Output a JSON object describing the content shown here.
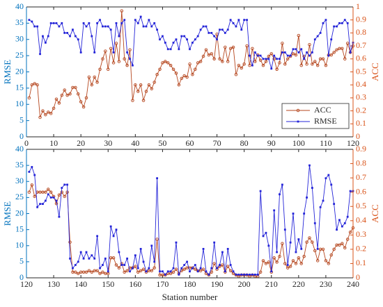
{
  "chart_data": [
    {
      "type": "line",
      "ylabel": "RMSE",
      "y2label": "ACC",
      "xlim": [
        0,
        120
      ],
      "xticks": [
        0,
        10,
        20,
        30,
        40,
        50,
        60,
        70,
        80,
        90,
        100,
        110,
        120
      ],
      "ylim": [
        0,
        40
      ],
      "yticks": [
        0,
        5,
        10,
        15,
        20,
        25,
        30,
        35,
        40
      ],
      "y2lim": [
        0,
        1
      ],
      "y2ticks": [
        0,
        0.1,
        0.2,
        0.3,
        0.4,
        0.5,
        0.6,
        0.7,
        0.8,
        0.9,
        1
      ],
      "y_axis_color": "#0072bd",
      "y2_axis_color": "#d95319",
      "legend": "lower right",
      "x": [
        1,
        2,
        3,
        4,
        5,
        6,
        7,
        8,
        9,
        10,
        11,
        12,
        13,
        14,
        15,
        16,
        17,
        18,
        19,
        20,
        21,
        22,
        23,
        24,
        25,
        26,
        27,
        28,
        29,
        30,
        31,
        32,
        33,
        34,
        35,
        36,
        37,
        38,
        39,
        40,
        41,
        42,
        43,
        44,
        45,
        46,
        47,
        48,
        49,
        50,
        51,
        52,
        53,
        54,
        55,
        56,
        57,
        58,
        59,
        60,
        61,
        62,
        63,
        64,
        65,
        66,
        67,
        68,
        69,
        70,
        71,
        72,
        73,
        74,
        75,
        76,
        77,
        78,
        79,
        80,
        81,
        82,
        83,
        84,
        85,
        86,
        87,
        88,
        89,
        90,
        91,
        92,
        93,
        94,
        95,
        96,
        97,
        98,
        99,
        100,
        101,
        102,
        103,
        104,
        105,
        106,
        107,
        108,
        109,
        110,
        111,
        112,
        113,
        114,
        115,
        116,
        117,
        118,
        119,
        120
      ],
      "series": [
        {
          "name": "ACC",
          "color": "#b5461e",
          "axis": "y2",
          "marker": "circle",
          "values": [
            0.3,
            0.4,
            0.41,
            0.4,
            0.15,
            0.2,
            0.17,
            0.19,
            0.18,
            0.22,
            0.29,
            0.26,
            0.32,
            0.36,
            0.32,
            0.33,
            0.38,
            0.38,
            0.33,
            0.27,
            0.23,
            0.3,
            0.46,
            0.4,
            0.46,
            0.42,
            0.52,
            0.6,
            0.66,
            0.52,
            0.68,
            0.57,
            0.72,
            0.58,
            0.97,
            0.6,
            0.55,
            0.67,
            0.28,
            0.4,
            0.35,
            0.4,
            0.28,
            0.35,
            0.4,
            0.37,
            0.42,
            0.48,
            0.52,
            0.57,
            0.58,
            0.57,
            0.55,
            0.52,
            0.49,
            0.4,
            0.45,
            0.47,
            0.46,
            0.56,
            0.48,
            0.52,
            0.57,
            0.58,
            0.62,
            0.67,
            0.63,
            0.64,
            0.6,
            0.79,
            0.6,
            0.58,
            0.69,
            0.58,
            0.68,
            0.69,
            0.48,
            0.55,
            0.53,
            0.56,
            0.7,
            0.55,
            0.68,
            0.58,
            0.63,
            0.59,
            0.55,
            0.58,
            0.62,
            0.64,
            0.6,
            0.52,
            0.57,
            0.72,
            0.56,
            0.6,
            0.62,
            0.64,
            0.63,
            0.78,
            0.55,
            0.62,
            0.56,
            0.71,
            0.56,
            0.58,
            0.55,
            0.6,
            0.6,
            0.55,
            0.63,
            0.63,
            0.65,
            0.67,
            0.68,
            0.68,
            0.6,
            0.72,
            0.65,
            0.7
          ]
        },
        {
          "name": "RMSE",
          "color": "#2424d8",
          "marker": "square",
          "values": [
            36,
            35.5,
            34,
            34,
            25.5,
            31,
            29,
            31,
            35,
            35,
            35,
            34,
            35,
            32,
            32,
            31,
            33,
            31,
            30,
            26,
            35,
            34,
            35,
            31,
            26,
            35,
            36,
            34,
            34,
            34,
            33,
            26,
            35,
            31,
            35,
            36,
            26,
            24,
            22,
            36,
            35,
            37,
            34,
            34,
            36,
            34,
            35,
            33,
            30,
            31,
            29,
            27,
            27,
            29,
            30,
            27,
            31,
            31,
            30,
            27,
            29,
            30,
            31,
            33,
            34,
            34,
            32,
            32,
            31,
            30,
            33,
            33,
            32,
            33,
            36,
            35,
            34,
            36,
            33,
            36,
            36,
            25,
            22,
            26,
            25,
            25,
            24,
            24,
            24,
            21,
            25,
            24,
            24,
            26,
            26,
            25,
            25,
            27,
            27,
            26,
            27,
            24,
            26,
            25,
            26,
            30,
            31,
            32,
            35,
            36,
            25,
            30,
            34,
            34,
            35,
            35,
            36,
            35,
            26,
            29
          ]
        }
      ]
    },
    {
      "type": "line",
      "ylabel": "RMSE",
      "y2label": "ACC",
      "xlabel": "Station number",
      "xlim": [
        120,
        240
      ],
      "xticks": [
        120,
        130,
        140,
        150,
        160,
        170,
        180,
        190,
        200,
        210,
        220,
        230,
        240
      ],
      "ylim": [
        0,
        40
      ],
      "yticks": [
        0,
        5,
        10,
        15,
        20,
        25,
        30,
        35,
        40
      ],
      "y2lim": [
        0,
        0.9
      ],
      "y2ticks": [
        0,
        0.1,
        0.2,
        0.3,
        0.4,
        0.5,
        0.6,
        0.7,
        0.8,
        0.9
      ],
      "y_axis_color": "#0072bd",
      "y2_axis_color": "#d95319",
      "x": [
        121,
        122,
        123,
        124,
        125,
        126,
        127,
        128,
        129,
        130,
        131,
        132,
        133,
        134,
        135,
        136,
        137,
        138,
        139,
        140,
        141,
        142,
        143,
        144,
        145,
        146,
        147,
        148,
        149,
        150,
        151,
        152,
        153,
        154,
        155,
        156,
        157,
        158,
        159,
        160,
        161,
        162,
        163,
        164,
        165,
        166,
        167,
        168,
        169,
        170,
        171,
        172,
        173,
        174,
        175,
        176,
        177,
        178,
        179,
        180,
        181,
        182,
        183,
        184,
        185,
        186,
        187,
        188,
        189,
        190,
        191,
        192,
        193,
        194,
        195,
        196,
        197,
        198,
        199,
        200,
        201,
        202,
        203,
        204,
        205,
        206,
        207,
        208,
        209,
        210,
        211,
        212,
        213,
        214,
        215,
        216,
        217,
        218,
        219,
        220,
        221,
        222,
        223,
        224,
        225,
        226,
        227,
        228,
        229,
        230,
        231,
        232,
        233,
        234,
        235,
        236,
        237,
        238,
        239,
        240
      ],
      "series": [
        {
          "name": "ACC",
          "color": "#b5461e",
          "axis": "y2",
          "marker": "circle",
          "values": [
            0.6,
            0.65,
            0.57,
            0.6,
            0.6,
            0.6,
            0.6,
            0.62,
            0.6,
            0.57,
            0.52,
            0.58,
            0.6,
            0.57,
            0.6,
            0.25,
            0.04,
            0.04,
            0.03,
            0.04,
            0.04,
            0.04,
            0.05,
            0.04,
            0.05,
            0.05,
            0.03,
            0.04,
            0.03,
            0.03,
            0.14,
            0.14,
            0.09,
            0.07,
            0.1,
            0.04,
            0.05,
            0.07,
            0.07,
            0.08,
            0.04,
            0.05,
            0.06,
            0.04,
            0.05,
            0.05,
            0.07,
            0.27,
            0.02,
            0.02,
            0.02,
            0.03,
            0.03,
            0.04,
            0.06,
            0.03,
            0.05,
            0.06,
            0.07,
            0.07,
            0.07,
            0.06,
            0.05,
            0.05,
            0.06,
            0.03,
            0.02,
            0.04,
            0.1,
            0.06,
            0.08,
            0.09,
            0.04,
            0.08,
            0.05,
            0.03,
            0.02,
            0.01,
            0.02,
            0.02,
            0.02,
            0.01,
            0.02,
            0.01,
            0.01,
            0.04,
            0.12,
            0.1,
            0.11,
            0.04,
            0.14,
            0.11,
            0.15,
            0.24,
            0.1,
            0.07,
            0.08,
            0.12,
            0.1,
            0.14,
            0.1,
            0.15,
            0.25,
            0.28,
            0.25,
            0.19,
            0.12,
            0.2,
            0.2,
            0.12,
            0.1,
            0.16,
            0.2,
            0.23,
            0.23,
            0.24,
            0.21,
            0.27,
            0.32,
            0.35
          ]
        },
        {
          "name": "RMSE",
          "color": "#2424d8",
          "marker": "square",
          "values": [
            33,
            34.5,
            32,
            22,
            23,
            23,
            24,
            26,
            25,
            25,
            24,
            19,
            28,
            29,
            29,
            6,
            3,
            4,
            5,
            8,
            6,
            8,
            6,
            7,
            6,
            13,
            3,
            4,
            6,
            2,
            16,
            13,
            15,
            8,
            4,
            4,
            6,
            2,
            3,
            7,
            3,
            9,
            5,
            2,
            3,
            10,
            5,
            31,
            2,
            2,
            1,
            2,
            2,
            3,
            11,
            1,
            3,
            4,
            5,
            2,
            3,
            4,
            2,
            3,
            9,
            2,
            1,
            3,
            11,
            3,
            4,
            8,
            2,
            9,
            4,
            2,
            1,
            1,
            1,
            1,
            1,
            1,
            1,
            1,
            1,
            27,
            13,
            14,
            10,
            2,
            21,
            8,
            26,
            29,
            15,
            4,
            11,
            20,
            8,
            12,
            9,
            20,
            25,
            35,
            28,
            17,
            9,
            22,
            24,
            31,
            32,
            29,
            23,
            15,
            18,
            16,
            17,
            19,
            27,
            27
          ]
        }
      ]
    }
  ]
}
